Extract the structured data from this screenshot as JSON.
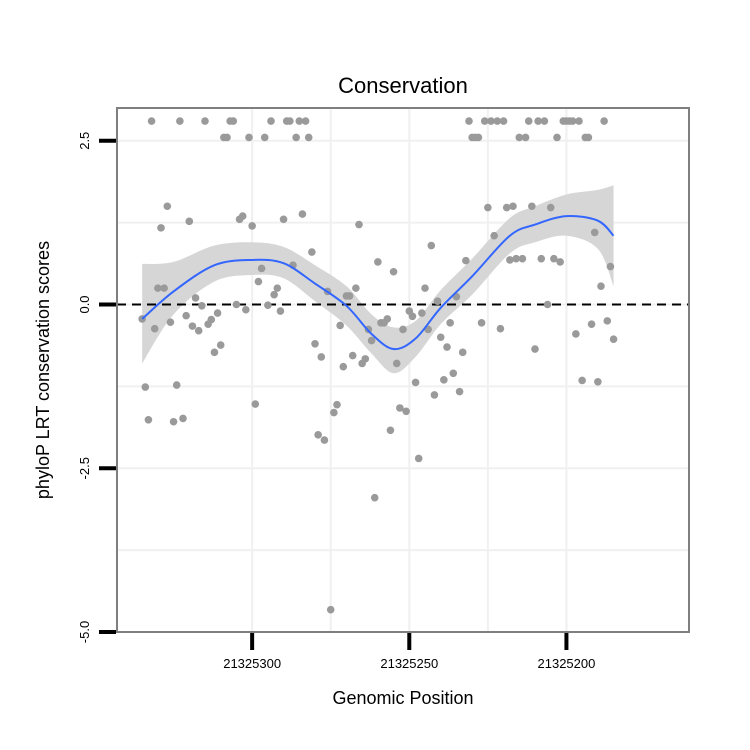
{
  "chart_data": {
    "type": "scatter",
    "title": "Conservation",
    "xlabel": "Genomic Position",
    "ylabel": "phyloP LRT conservation scores",
    "x_reversed": true,
    "xlim": [
      21325343,
      21325161
    ],
    "ylim": [
      -5.0,
      3.0
    ],
    "x_ticks": [
      {
        "value": 21325300,
        "label": "21325300"
      },
      {
        "value": 21325250,
        "label": "21325250"
      },
      {
        "value": 21325200,
        "label": "21325200"
      }
    ],
    "y_ticks": [
      {
        "value": 2.5,
        "label": "2.5"
      },
      {
        "value": 0.0,
        "label": "0.0"
      },
      {
        "value": -2.5,
        "label": "-2.5"
      },
      {
        "value": -5.0,
        "label": "-5.0"
      }
    ],
    "grid": true,
    "reference_line": {
      "y": 0.0,
      "style": "dashed",
      "color": "#000000"
    },
    "colors": {
      "points": "#9a9a9a",
      "smooth": "#3366ff",
      "ribbon": "#d6d6d6",
      "panel_border": "#7f7f7f",
      "grid": "#f0f0f0"
    },
    "points": [
      [
        21325335,
        -0.22
      ],
      [
        21325334,
        -1.26
      ],
      [
        21325333,
        -1.76
      ],
      [
        21325332,
        2.8
      ],
      [
        21325331,
        -0.37
      ],
      [
        21325330,
        0.25
      ],
      [
        21325329,
        1.17
      ],
      [
        21325328,
        0.25
      ],
      [
        21325327,
        1.5
      ],
      [
        21325326,
        -0.27
      ],
      [
        21325325,
        -1.79
      ],
      [
        21325324,
        -1.23
      ],
      [
        21325323,
        2.8
      ],
      [
        21325322,
        -1.74
      ],
      [
        21325321,
        -0.17
      ],
      [
        21325320,
        1.27
      ],
      [
        21325319,
        -0.33
      ],
      [
        21325318,
        0.1
      ],
      [
        21325317,
        -0.4
      ],
      [
        21325316,
        -0.02
      ],
      [
        21325315,
        2.8
      ],
      [
        21325314,
        -0.3
      ],
      [
        21325313,
        -0.23
      ],
      [
        21325312,
        -0.73
      ],
      [
        21325311,
        -0.13
      ],
      [
        21325310,
        -0.62
      ],
      [
        21325309,
        2.55
      ],
      [
        21325308,
        2.55
      ],
      [
        21325307,
        2.8
      ],
      [
        21325306,
        2.8
      ],
      [
        21325305,
        0.0
      ],
      [
        21325304,
        1.3
      ],
      [
        21325303,
        1.35
      ],
      [
        21325302,
        -0.08
      ],
      [
        21325301,
        2.55
      ],
      [
        21325300,
        1.2
      ],
      [
        21325299,
        -1.52
      ],
      [
        21325298,
        0.35
      ],
      [
        21325297,
        0.55
      ],
      [
        21325296,
        2.55
      ],
      [
        21325295,
        -0.01
      ],
      [
        21325294,
        2.8
      ],
      [
        21325293,
        0.15
      ],
      [
        21325292,
        0.25
      ],
      [
        21325291,
        -0.1
      ],
      [
        21325290,
        1.3
      ],
      [
        21325289,
        2.8
      ],
      [
        21325288,
        2.8
      ],
      [
        21325287,
        0.6
      ],
      [
        21325286,
        2.55
      ],
      [
        21325285,
        2.8
      ],
      [
        21325284,
        1.38
      ],
      [
        21325283,
        2.8
      ],
      [
        21325282,
        2.55
      ],
      [
        21325281,
        0.8
      ],
      [
        21325280,
        -0.6
      ],
      [
        21325279,
        -1.99
      ],
      [
        21325278,
        -0.8
      ],
      [
        21325277,
        -2.07
      ],
      [
        21325276,
        0.2
      ],
      [
        21325275,
        -4.66
      ],
      [
        21325274,
        -1.65
      ],
      [
        21325273,
        -1.53
      ],
      [
        21325272,
        -0.32
      ],
      [
        21325271,
        -0.95
      ],
      [
        21325270,
        0.13
      ],
      [
        21325269,
        0.13
      ],
      [
        21325268,
        -0.78
      ],
      [
        21325267,
        0.25
      ],
      [
        21325266,
        1.22
      ],
      [
        21325265,
        -0.9
      ],
      [
        21325264,
        -0.83
      ],
      [
        21325263,
        -0.38
      ],
      [
        21325262,
        -0.55
      ],
      [
        21325261,
        -2.95
      ],
      [
        21325260,
        0.65
      ],
      [
        21325259,
        -0.28
      ],
      [
        21325258,
        -0.28
      ],
      [
        21325257,
        -0.22
      ],
      [
        21325256,
        -1.92
      ],
      [
        21325255,
        0.5
      ],
      [
        21325254,
        -0.9
      ],
      [
        21325253,
        -1.58
      ],
      [
        21325252,
        -0.38
      ],
      [
        21325251,
        -1.63
      ],
      [
        21325250,
        -0.1
      ],
      [
        21325249,
        -0.18
      ],
      [
        21325248,
        -1.19
      ],
      [
        21325247,
        -2.35
      ],
      [
        21325246,
        -0.13
      ],
      [
        21325245,
        0.25
      ],
      [
        21325244,
        -0.38
      ],
      [
        21325243,
        0.9
      ],
      [
        21325242,
        -1.38
      ],
      [
        21325241,
        0.05
      ],
      [
        21325240,
        -0.5
      ],
      [
        21325239,
        -1.15
      ],
      [
        21325238,
        -0.65
      ],
      [
        21325237,
        -0.28
      ],
      [
        21325236,
        -1.05
      ],
      [
        21325235,
        0.12
      ],
      [
        21325234,
        -1.33
      ],
      [
        21325233,
        -0.73
      ],
      [
        21325232,
        0.67
      ],
      [
        21325231,
        2.8
      ],
      [
        21325230,
        2.55
      ],
      [
        21325229,
        2.55
      ],
      [
        21325228,
        2.55
      ],
      [
        21325227,
        -0.28
      ],
      [
        21325226,
        2.8
      ],
      [
        21325225,
        1.48
      ],
      [
        21325224,
        2.8
      ],
      [
        21325223,
        1.05
      ],
      [
        21325222,
        2.8
      ],
      [
        21325221,
        -0.37
      ],
      [
        21325220,
        2.8
      ],
      [
        21325219,
        1.48
      ],
      [
        21325218,
        0.68
      ],
      [
        21325217,
        1.5
      ],
      [
        21325216,
        0.7
      ],
      [
        21325215,
        2.55
      ],
      [
        21325214,
        0.7
      ],
      [
        21325213,
        2.55
      ],
      [
        21325212,
        2.8
      ],
      [
        21325211,
        1.5
      ],
      [
        21325210,
        -0.68
      ],
      [
        21325209,
        2.8
      ],
      [
        21325208,
        0.7
      ],
      [
        21325207,
        2.8
      ],
      [
        21325206,
        0.0
      ],
      [
        21325205,
        1.48
      ],
      [
        21325204,
        0.7
      ],
      [
        21325203,
        2.55
      ],
      [
        21325202,
        0.65
      ],
      [
        21325201,
        2.8
      ],
      [
        21325200,
        2.8
      ],
      [
        21325199,
        2.8
      ],
      [
        21325198,
        2.8
      ],
      [
        21325197,
        -0.45
      ],
      [
        21325196,
        2.8
      ],
      [
        21325195,
        -1.16
      ],
      [
        21325194,
        2.55
      ],
      [
        21325193,
        2.55
      ],
      [
        21325192,
        -0.3
      ],
      [
        21325191,
        1.1
      ],
      [
        21325190,
        -1.18
      ],
      [
        21325189,
        0.28
      ],
      [
        21325188,
        2.8
      ],
      [
        21325187,
        -0.25
      ],
      [
        21325186,
        0.58
      ],
      [
        21325185,
        -0.53
      ]
    ],
    "smooth_line": [
      {
        "x": 21325335,
        "y": -0.22,
        "lo": -0.9,
        "hi": 0.62
      },
      {
        "x": 21325325,
        "y": 0.2,
        "lo": -0.15,
        "hi": 0.65
      },
      {
        "x": 21325312,
        "y": 0.6,
        "lo": 0.35,
        "hi": 0.9
      },
      {
        "x": 21325300,
        "y": 0.68,
        "lo": 0.45,
        "hi": 0.95
      },
      {
        "x": 21325290,
        "y": 0.63,
        "lo": 0.4,
        "hi": 0.88
      },
      {
        "x": 21325280,
        "y": 0.32,
        "lo": 0.05,
        "hi": 0.6
      },
      {
        "x": 21325270,
        "y": -0.02,
        "lo": -0.32,
        "hi": 0.28
      },
      {
        "x": 21325262,
        "y": -0.45,
        "lo": -0.75,
        "hi": -0.15
      },
      {
        "x": 21325255,
        "y": -0.68,
        "lo": -1.05,
        "hi": -0.35
      },
      {
        "x": 21325248,
        "y": -0.52,
        "lo": -0.8,
        "hi": -0.25
      },
      {
        "x": 21325240,
        "y": -0.05,
        "lo": -0.3,
        "hi": 0.22
      },
      {
        "x": 21325230,
        "y": 0.43,
        "lo": 0.15,
        "hi": 0.7
      },
      {
        "x": 21325218,
        "y": 1.05,
        "lo": 0.78,
        "hi": 1.32
      },
      {
        "x": 21325210,
        "y": 1.22,
        "lo": 0.95,
        "hi": 1.5
      },
      {
        "x": 21325200,
        "y": 1.35,
        "lo": 1.05,
        "hi": 1.68
      },
      {
        "x": 21325190,
        "y": 1.28,
        "lo": 0.85,
        "hi": 1.75
      },
      {
        "x": 21325185,
        "y": 1.05,
        "lo": 0.28,
        "hi": 1.82
      }
    ]
  }
}
